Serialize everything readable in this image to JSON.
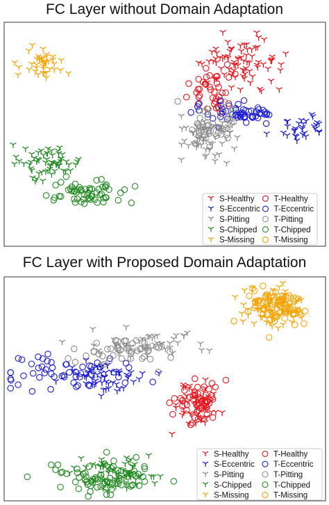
{
  "figure": {
    "panels": [
      {
        "title": "FC Layer without Domain Adaptation"
      },
      {
        "title": "FC Layer with Proposed Domain Adaptation"
      }
    ],
    "legend": {
      "source": [
        "S-Healthy",
        "S-Eccentric",
        "S-Pitting",
        "S-Chipped",
        "S-Missing"
      ],
      "target": [
        "T-Healthy",
        "T-Eccentric",
        "T-Pitting",
        "T-Chipped",
        "T-Missing"
      ],
      "placement": "bottom-right"
    },
    "colors": {
      "Healthy": "#e8141c",
      "Eccentric": "#1b1bd6",
      "Pitting": "#8c8c8c",
      "Chipped": "#1f8a1f",
      "Missing": "#f5a300"
    },
    "markers": {
      "source": "tri-down (Y)",
      "target": "open circle"
    }
  },
  "chart_data": [
    {
      "type": "scatter",
      "title": "FC Layer without Domain Adaptation",
      "xlabel": "",
      "ylabel": "",
      "xlim": [
        0,
        1
      ],
      "ylim": [
        0,
        1
      ],
      "axis_ticks": "none",
      "grid": false,
      "legend_position": "bottom-right",
      "clusters": [
        {
          "series": "S-Healthy",
          "marker": "tri",
          "center": [
            0.74,
            0.18
          ],
          "spread": [
            0.09,
            0.09
          ],
          "count": 80
        },
        {
          "series": "T-Healthy",
          "marker": "circle",
          "center": [
            0.65,
            0.3
          ],
          "spread": [
            0.06,
            0.06
          ],
          "count": 40
        },
        {
          "series": "S-Eccentric",
          "marker": "tri",
          "center": [
            0.92,
            0.46
          ],
          "spread": [
            0.06,
            0.05
          ],
          "count": 30
        },
        {
          "series": "T-Eccentric",
          "marker": "circle",
          "center": [
            0.72,
            0.4
          ],
          "spread": [
            0.09,
            0.04
          ],
          "count": 55
        },
        {
          "series": "S-Pitting",
          "marker": "tri",
          "center": [
            0.63,
            0.52
          ],
          "spread": [
            0.06,
            0.07
          ],
          "count": 60
        },
        {
          "series": "T-Pitting",
          "marker": "circle",
          "center": [
            0.64,
            0.45
          ],
          "spread": [
            0.06,
            0.07
          ],
          "count": 40
        },
        {
          "series": "S-Chipped",
          "marker": "tri",
          "center": [
            0.14,
            0.62
          ],
          "spread": [
            0.07,
            0.06
          ],
          "count": 60
        },
        {
          "series": "T-Chipped",
          "marker": "circle",
          "center": [
            0.25,
            0.76
          ],
          "spread": [
            0.08,
            0.04
          ],
          "count": 60
        },
        {
          "series": "S-Missing",
          "marker": "tri",
          "center": [
            0.11,
            0.18
          ],
          "spread": [
            0.05,
            0.05
          ],
          "count": 40
        },
        {
          "series": "T-Missing",
          "marker": "circle",
          "center": [
            0.87,
            0.9
          ],
          "spread": [
            0.06,
            0.04
          ],
          "count": 60
        }
      ]
    },
    {
      "type": "scatter",
      "title": "FC Layer with Proposed Domain Adaptation",
      "xlabel": "",
      "ylabel": "",
      "xlim": [
        0,
        1
      ],
      "ylim": [
        0,
        1
      ],
      "axis_ticks": "none",
      "grid": false,
      "legend_position": "bottom-right",
      "clusters": [
        {
          "series": "S-Healthy",
          "marker": "tri",
          "center": [
            0.6,
            0.56
          ],
          "spread": [
            0.05,
            0.07
          ],
          "count": 50
        },
        {
          "series": "T-Healthy",
          "marker": "circle",
          "center": [
            0.6,
            0.55
          ],
          "spread": [
            0.05,
            0.06
          ],
          "count": 50
        },
        {
          "series": "S-Eccentric",
          "marker": "tri",
          "center": [
            0.3,
            0.44
          ],
          "spread": [
            0.1,
            0.05
          ],
          "count": 55
        },
        {
          "series": "T-Eccentric",
          "marker": "circle",
          "center": [
            0.2,
            0.42
          ],
          "spread": [
            0.13,
            0.06
          ],
          "count": 55
        },
        {
          "series": "S-Pitting",
          "marker": "tri",
          "center": [
            0.42,
            0.3
          ],
          "spread": [
            0.12,
            0.04
          ],
          "count": 50
        },
        {
          "series": "T-Pitting",
          "marker": "circle",
          "center": [
            0.38,
            0.33
          ],
          "spread": [
            0.12,
            0.04
          ],
          "count": 45
        },
        {
          "series": "S-Chipped",
          "marker": "tri",
          "center": [
            0.33,
            0.88
          ],
          "spread": [
            0.09,
            0.05
          ],
          "count": 70
        },
        {
          "series": "T-Chipped",
          "marker": "circle",
          "center": [
            0.3,
            0.89
          ],
          "spread": [
            0.1,
            0.05
          ],
          "count": 70
        },
        {
          "series": "S-Missing",
          "marker": "tri",
          "center": [
            0.84,
            0.14
          ],
          "spread": [
            0.07,
            0.07
          ],
          "count": 80
        },
        {
          "series": "T-Missing",
          "marker": "circle",
          "center": [
            0.84,
            0.13
          ],
          "spread": [
            0.07,
            0.07
          ],
          "count": 70
        }
      ]
    }
  ]
}
